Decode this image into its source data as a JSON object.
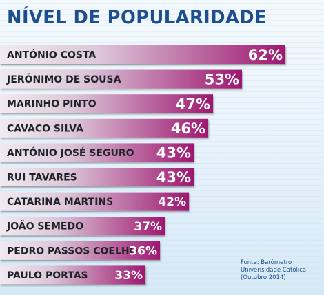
{
  "title": "NÍVEL DE POPULARIDADE",
  "source": [
    "Fonte: Barómetro",
    "Univerisidade Católica",
    "(Outubro 2014)"
  ],
  "colors": {
    "title": "#1d4e8e",
    "bar_start": "#f1eaf1",
    "bar_end": "#9e1770",
    "label": "#1e2328",
    "value": "#ffffff"
  },
  "chart_data": {
    "type": "bar",
    "orientation": "horizontal",
    "title": "NÍVEL DE POPULARIDADE",
    "categories": [
      "ANTÓNIO COSTA",
      "JERÓNIMO DE SOUSA",
      "MARINHO PINTO",
      "CAVACO SILVA",
      "ANTÓNIO JOSÉ SEGURO",
      "RUI TAVARES",
      "CATARINA MARTINS",
      "JOÃO SEMEDO",
      "PEDRO PASSOS COELHO",
      "PAULO PORTAS"
    ],
    "values": [
      62,
      53,
      47,
      46,
      43,
      43,
      42,
      37,
      36,
      33
    ],
    "value_labels": [
      "62%",
      "53%",
      "47%",
      "46%",
      "43%",
      "43%",
      "42%",
      "37%",
      "36%",
      "33%"
    ],
    "unit": "%"
  }
}
